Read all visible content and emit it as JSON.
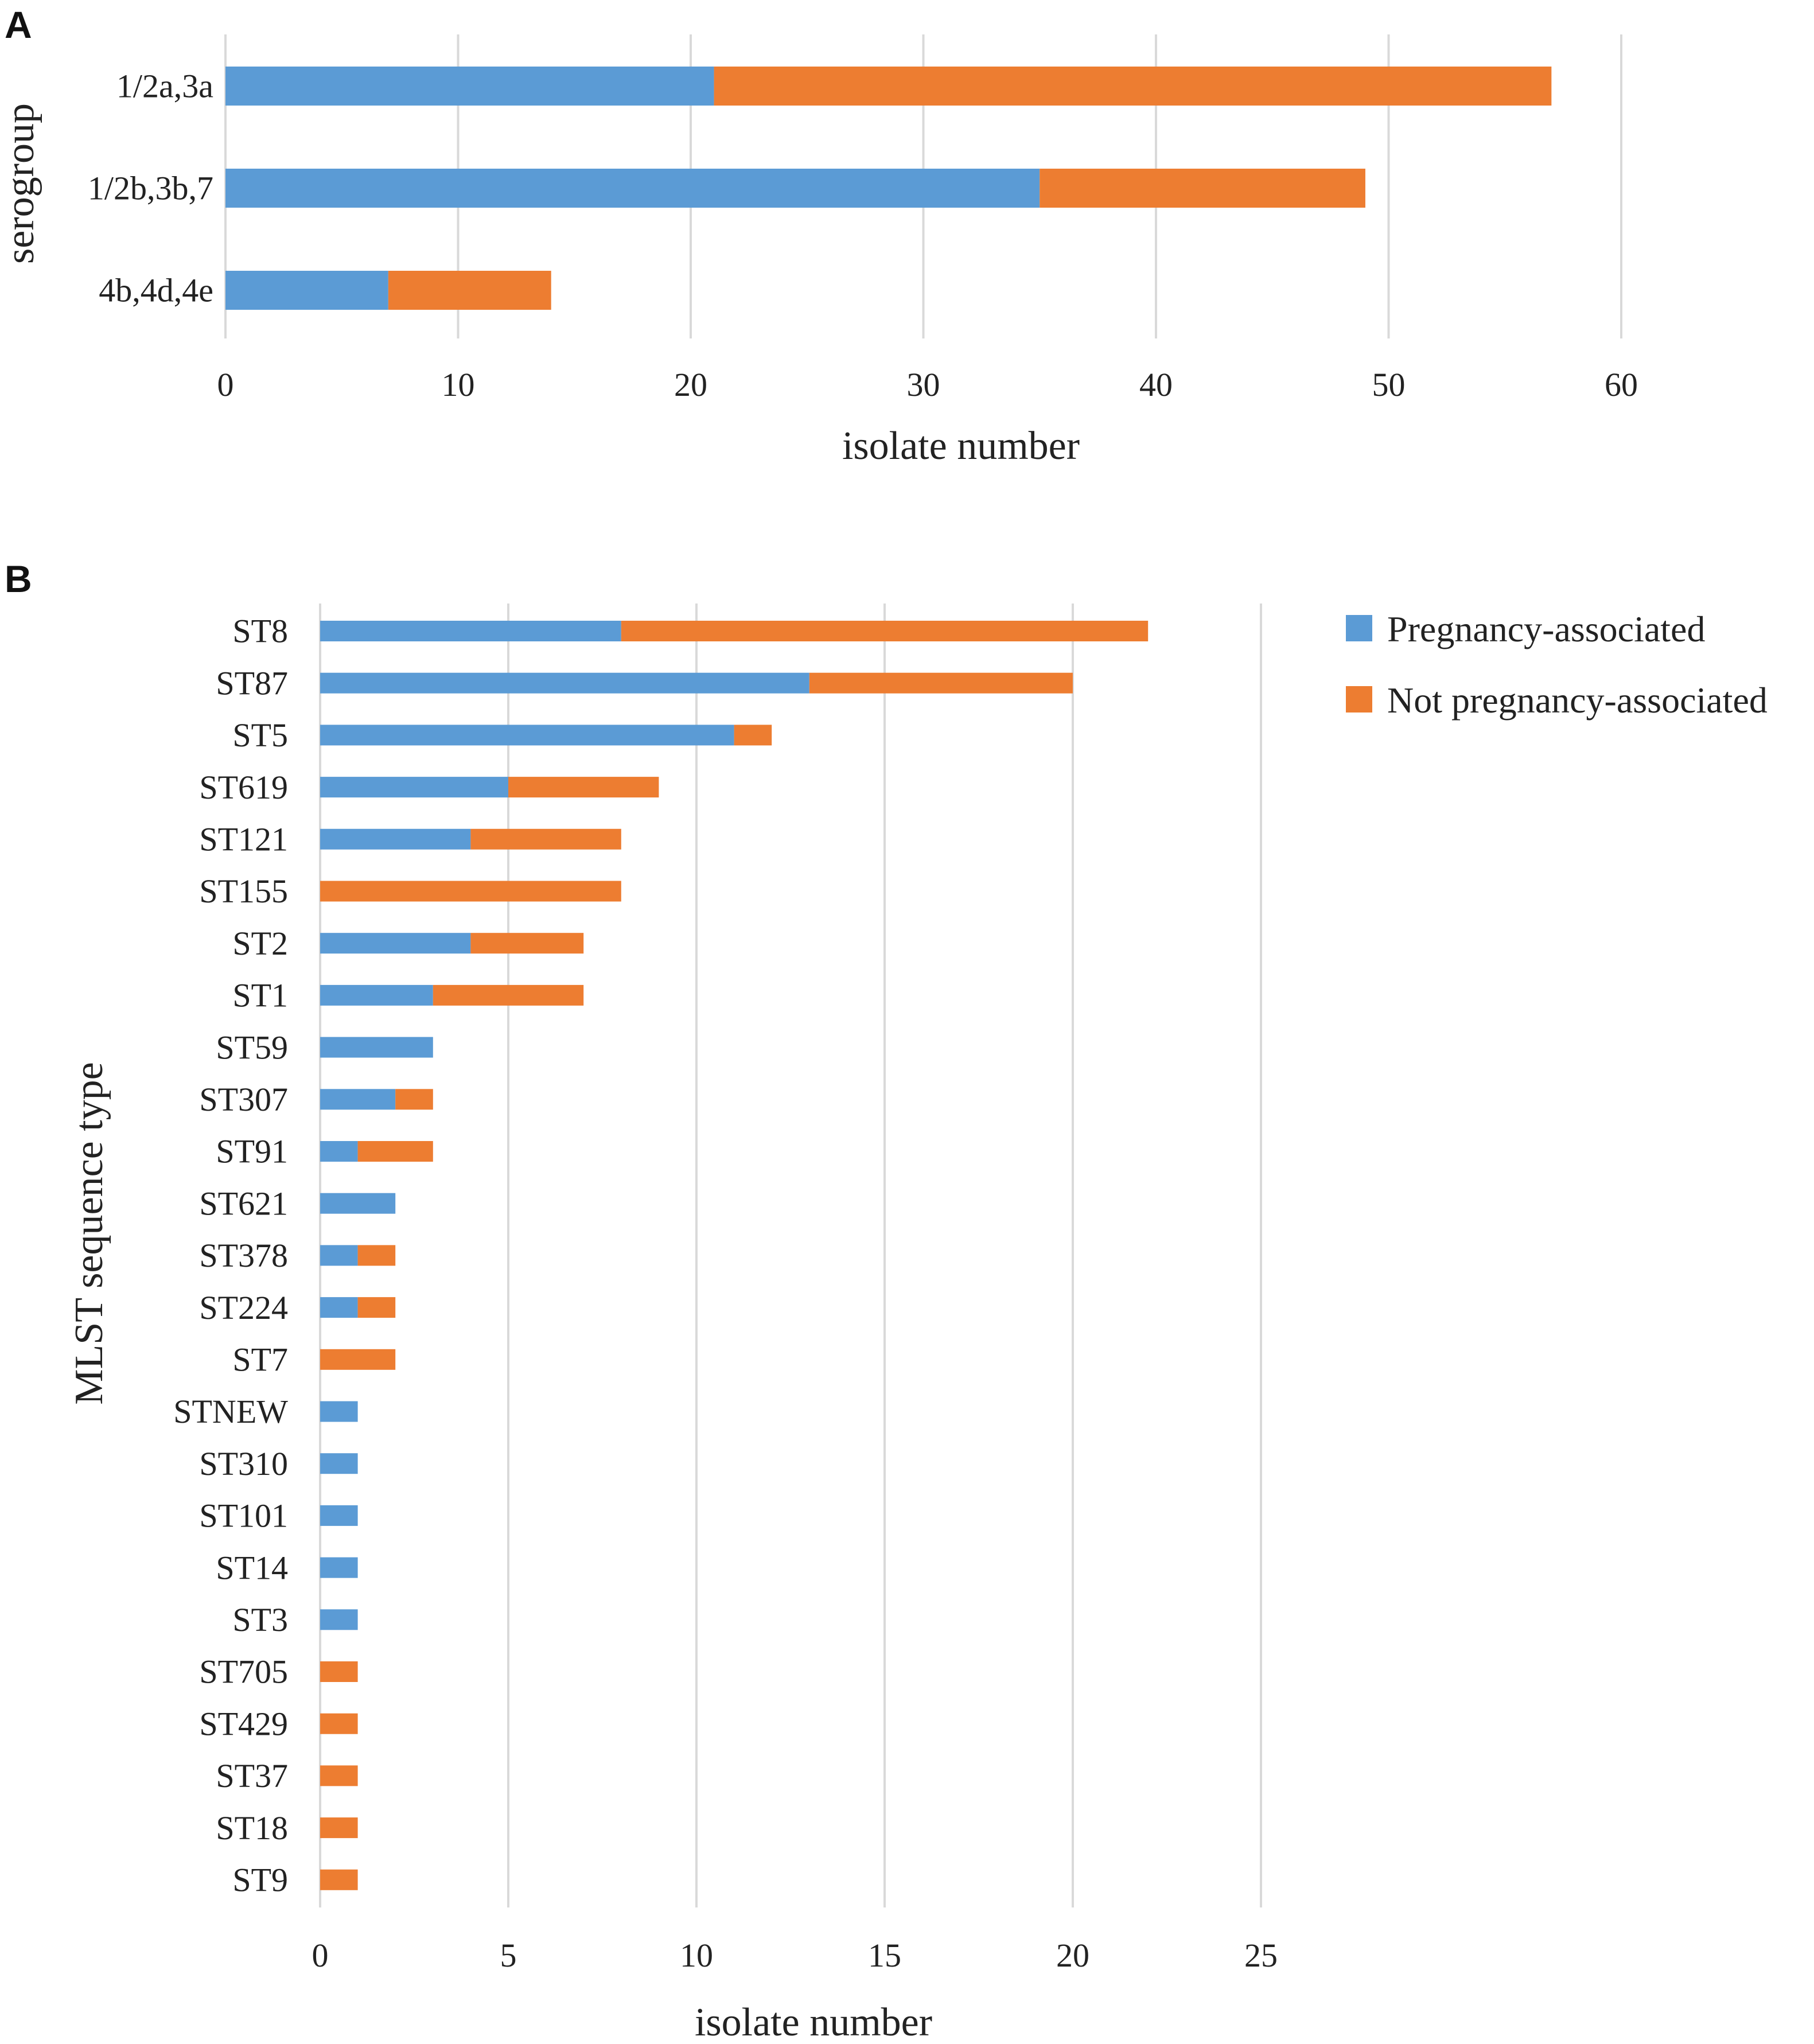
{
  "colors": {
    "pregnancy": "#5b9bd5",
    "not_pregnancy": "#ed7d31",
    "gridline": "#d9d9d9"
  },
  "legend": {
    "entries": [
      {
        "key": "pregnancy",
        "label": "Pregnancy-associated"
      },
      {
        "key": "not_pregnancy",
        "label": "Not pregnancy-associated"
      }
    ]
  },
  "chart_data": [
    {
      "panel": "A",
      "type": "bar",
      "orientation": "horizontal",
      "stacked": true,
      "xlabel": "isolate number",
      "ylabel": "serogroup",
      "xlim": [
        0,
        60
      ],
      "xticks": [
        0,
        10,
        20,
        30,
        40,
        50,
        60
      ],
      "grid": true,
      "categories": [
        "1/2a,3a",
        "1/2b,3b,7",
        "4b,4d,4e"
      ],
      "series": [
        {
          "name": "Pregnancy-associated",
          "key": "pregnancy",
          "values": [
            21,
            35,
            7
          ]
        },
        {
          "name": "Not pregnancy-associated",
          "key": "not_pregnancy",
          "values": [
            36,
            14,
            7
          ]
        }
      ]
    },
    {
      "panel": "B",
      "type": "bar",
      "orientation": "horizontal",
      "stacked": true,
      "xlabel": "isolate number",
      "ylabel": "MLST sequence type",
      "xlim": [
        0,
        25
      ],
      "xticks": [
        0,
        5,
        10,
        15,
        20,
        25
      ],
      "grid": true,
      "legend_position": "top-right",
      "categories": [
        "ST8",
        "ST87",
        "ST5",
        "ST619",
        "ST121",
        "ST155",
        "ST2",
        "ST1",
        "ST59",
        "ST307",
        "ST91",
        "ST621",
        "ST378",
        "ST224",
        "ST7",
        "STNEW",
        "ST310",
        "ST101",
        "ST14",
        "ST3",
        "ST705",
        "ST429",
        "ST37",
        "ST18",
        "ST9"
      ],
      "series": [
        {
          "name": "Pregnancy-associated",
          "key": "pregnancy",
          "values": [
            8,
            13,
            11,
            5,
            4,
            0,
            4,
            3,
            3,
            2,
            1,
            2,
            1,
            1,
            0,
            1,
            1,
            1,
            1,
            1,
            0,
            0,
            0,
            0,
            0
          ]
        },
        {
          "name": "Not pregnancy-associated",
          "key": "not_pregnancy",
          "values": [
            14,
            7,
            1,
            4,
            4,
            8,
            3,
            4,
            0,
            1,
            2,
            0,
            1,
            1,
            2,
            0,
            0,
            0,
            0,
            0,
            1,
            1,
            1,
            1,
            1
          ]
        }
      ]
    }
  ]
}
